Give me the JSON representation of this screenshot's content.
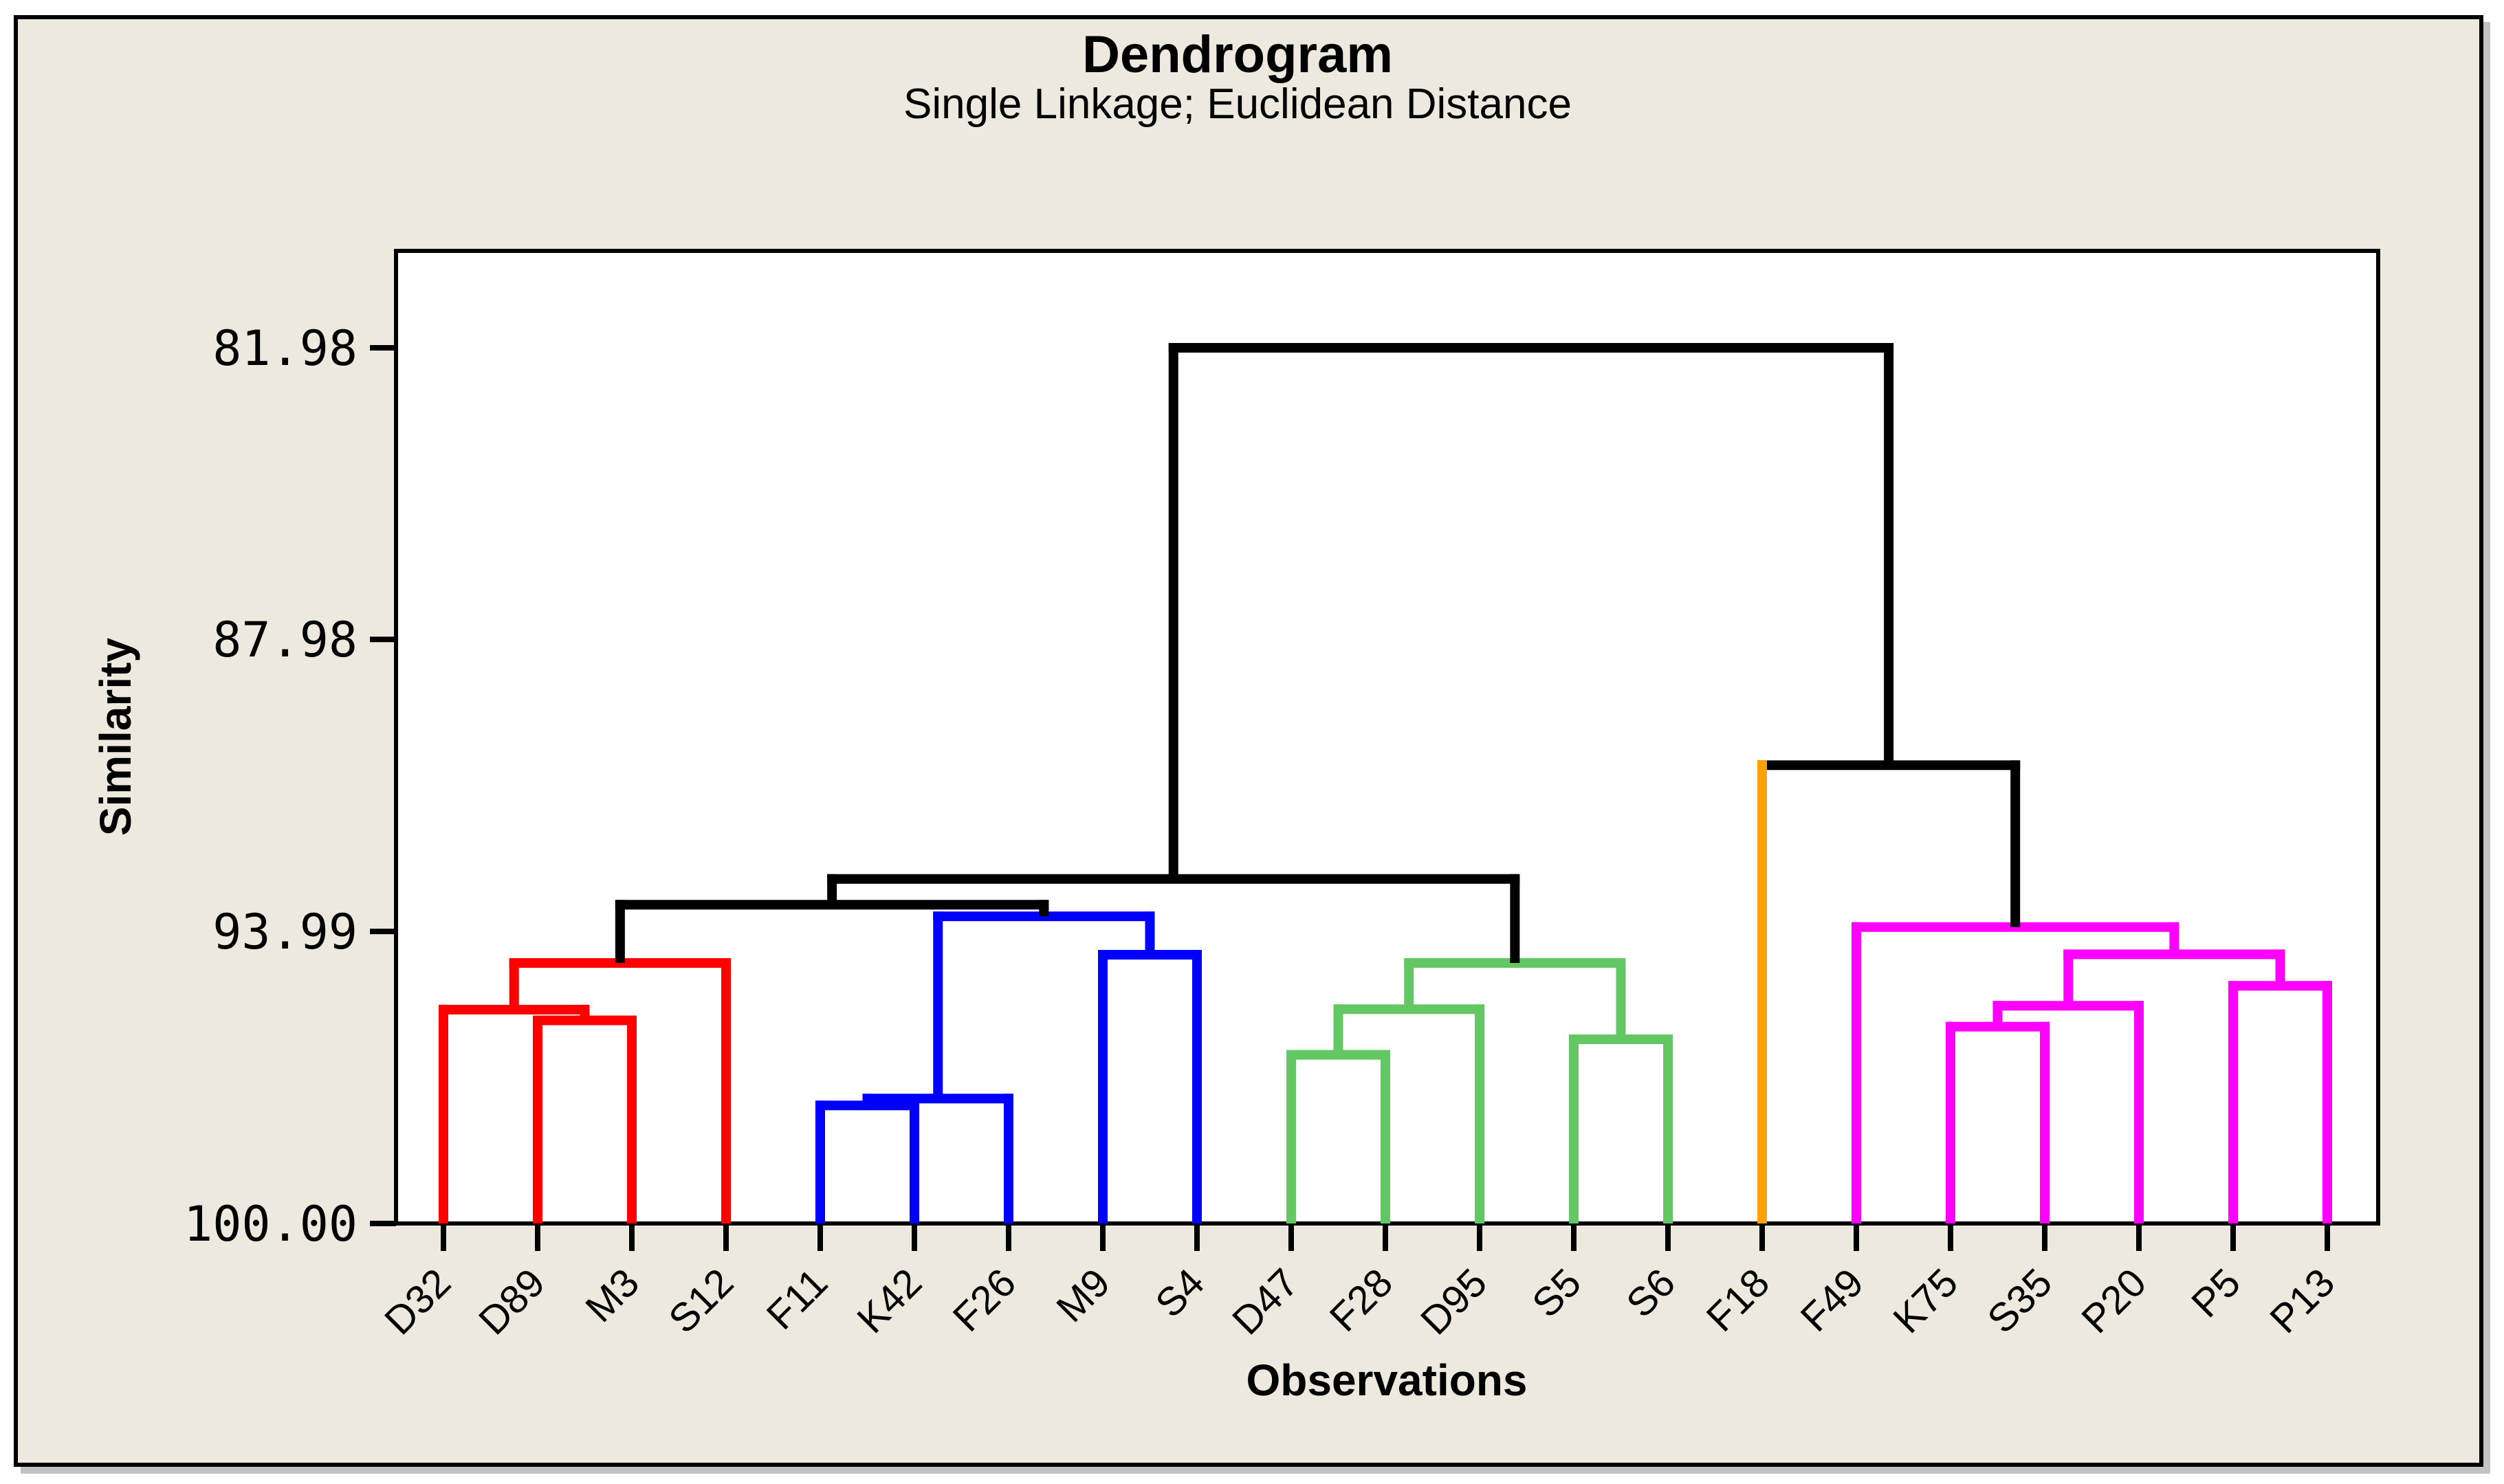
{
  "figure": {
    "title": "Dendrogram",
    "subtitle": "Single Linkage; Euclidean Distance"
  },
  "axes": {
    "y_title": "Similarity",
    "x_title": "Observations",
    "y_ticks": [
      {
        "label": "81.98",
        "value": 81.98
      },
      {
        "label": "87.98",
        "value": 87.98
      },
      {
        "label": "93.99",
        "value": 93.99
      },
      {
        "label": "100.00",
        "value": 100.0
      }
    ],
    "y_min": 81.98,
    "y_max": 100.0,
    "y_axis_inverted": "100.00 at baseline, lower similarity upward"
  },
  "colors": {
    "panel_background": "#EDE9DE",
    "plot_background": "#FFFFFF",
    "frame": "#000000",
    "black_link": "#000000",
    "red": "#FF0000",
    "blue": "#0000FF",
    "green": "#63C763",
    "orange": "#FFA005",
    "magenta": "#FF00FF"
  },
  "chart_data": {
    "type": "dendrogram",
    "title": "Dendrogram",
    "subtitle": "Single Linkage; Euclidean Distance",
    "xlabel": "Observations",
    "ylabel": "Similarity",
    "ylim": [
      81.98,
      100.0
    ],
    "legend": "none",
    "grid": "off",
    "leaves": [
      {
        "label": "D32",
        "cluster": "red"
      },
      {
        "label": "D89",
        "cluster": "red"
      },
      {
        "label": "M3",
        "cluster": "red"
      },
      {
        "label": "S12",
        "cluster": "red"
      },
      {
        "label": "F11",
        "cluster": "blue"
      },
      {
        "label": "K42",
        "cluster": "blue"
      },
      {
        "label": "F26",
        "cluster": "blue"
      },
      {
        "label": "M9",
        "cluster": "blue"
      },
      {
        "label": "S4",
        "cluster": "blue"
      },
      {
        "label": "D47",
        "cluster": "green"
      },
      {
        "label": "F28",
        "cluster": "green"
      },
      {
        "label": "D95",
        "cluster": "green"
      },
      {
        "label": "S5",
        "cluster": "green"
      },
      {
        "label": "S6",
        "cluster": "green"
      },
      {
        "label": "F18",
        "cluster": "orange"
      },
      {
        "label": "F49",
        "cluster": "magenta"
      },
      {
        "label": "K75",
        "cluster": "magenta"
      },
      {
        "label": "S35",
        "cluster": "magenta"
      },
      {
        "label": "P20",
        "cluster": "magenta"
      },
      {
        "label": "P5",
        "cluster": "magenta"
      },
      {
        "label": "P13",
        "cluster": "magenta"
      }
    ],
    "merges": [
      {
        "id": "m1",
        "a": "D89",
        "b": "M3",
        "similarity": 95.82,
        "color": "red"
      },
      {
        "id": "m2",
        "a": "D32",
        "b": "m1",
        "similarity": 95.6,
        "color": "red"
      },
      {
        "id": "m3",
        "a": "m2",
        "b": "S12",
        "similarity": 94.64,
        "color": "red"
      },
      {
        "id": "m4",
        "a": "F11",
        "b": "K42",
        "similarity": 97.57,
        "color": "blue"
      },
      {
        "id": "m5",
        "a": "m4",
        "b": "F26",
        "similarity": 97.43,
        "color": "blue"
      },
      {
        "id": "m6",
        "a": "M9",
        "b": "S4",
        "similarity": 94.47,
        "color": "blue"
      },
      {
        "id": "m7",
        "a": "m5",
        "b": "m6",
        "similarity": 93.68,
        "color": "blue"
      },
      {
        "id": "m8",
        "a": "m3",
        "b": "m7",
        "similarity": 93.44,
        "color": "black_link"
      },
      {
        "id": "m9",
        "a": "D47",
        "b": "F28",
        "similarity": 96.53,
        "color": "green"
      },
      {
        "id": "m10",
        "a": "m9",
        "b": "D95",
        "similarity": 95.59,
        "color": "green"
      },
      {
        "id": "m11",
        "a": "S5",
        "b": "S6",
        "similarity": 96.21,
        "color": "green"
      },
      {
        "id": "m12",
        "a": "m10",
        "b": "m11",
        "similarity": 94.64,
        "color": "green"
      },
      {
        "id": "m13",
        "a": "m8",
        "b": "m12",
        "similarity": 92.91,
        "color": "black_link"
      },
      {
        "id": "m14",
        "a": "K75",
        "b": "S35",
        "similarity": 95.95,
        "color": "magenta"
      },
      {
        "id": "m15",
        "a": "m14",
        "b": "P20",
        "similarity": 95.52,
        "color": "magenta"
      },
      {
        "id": "m16",
        "a": "P5",
        "b": "P13",
        "similarity": 95.11,
        "color": "magenta"
      },
      {
        "id": "m17",
        "a": "m15",
        "b": "m16",
        "similarity": 94.46,
        "color": "magenta"
      },
      {
        "id": "m18",
        "a": "F49",
        "b": "m17",
        "similarity": 93.9,
        "color": "magenta"
      },
      {
        "id": "m19",
        "a": "F18",
        "b": "m18",
        "similarity": 90.57,
        "color": "black_link"
      },
      {
        "id": "m20",
        "a": "m13",
        "b": "m19",
        "similarity": 81.98,
        "color": "black_link"
      }
    ]
  }
}
